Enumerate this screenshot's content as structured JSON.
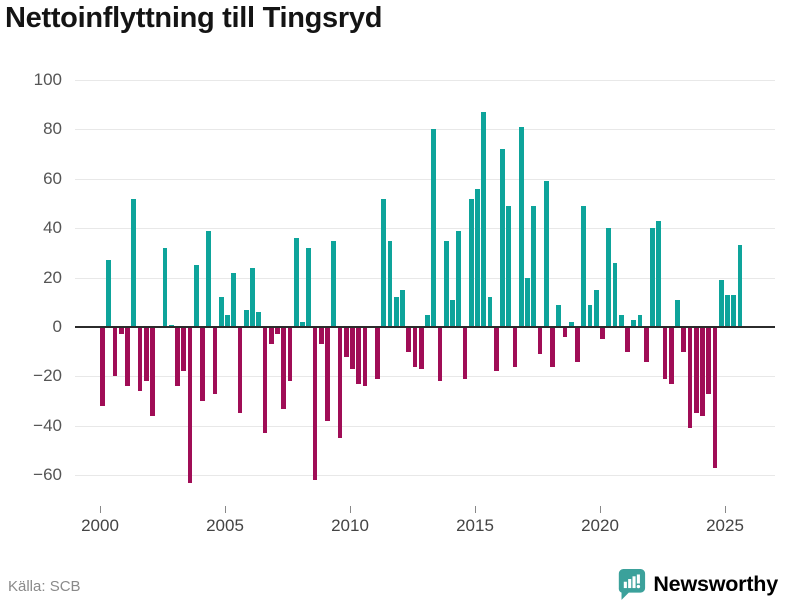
{
  "title": "Nettoinflyttning till Tingsryd",
  "source": "Källa: SCB",
  "logo": {
    "text": "Newsworthy",
    "color": "#3ba19b"
  },
  "colors": {
    "positive": "#0ea49b",
    "negative": "#a00d56",
    "gridline": "#e8e8e8",
    "zeroline": "#2b2b2b",
    "axis_text": "#555555",
    "title_text": "#141414"
  },
  "chart_data": {
    "type": "bar",
    "title": "Nettoinflyttning till Tingsryd",
    "xlabel": "",
    "ylabel": "",
    "frequency": "quarterly",
    "x_start": "2000 Q1",
    "x_end": "2025 Q3",
    "values": [
      -32,
      27,
      -20,
      -3,
      -24,
      52,
      -26,
      -22,
      -36,
      0,
      32,
      1,
      -24,
      -18,
      -63,
      25,
      -30,
      39,
      -27,
      12,
      5,
      22,
      -35,
      7,
      24,
      6,
      -43,
      -7,
      -3,
      -33,
      -22,
      36,
      2,
      32,
      -62,
      -7,
      -38,
      35,
      -45,
      -12,
      -17,
      -23,
      -24,
      0,
      -21,
      52,
      35,
      12,
      15,
      -10,
      -16,
      -17,
      5,
      80,
      -22,
      35,
      11,
      39,
      -21,
      52,
      56,
      87,
      12,
      -18,
      72,
      49,
      -16,
      81,
      20,
      49,
      -11,
      59,
      -16,
      9,
      -4,
      2,
      -14,
      49,
      9,
      15,
      -5,
      40,
      26,
      5,
      -10,
      3,
      5,
      -14,
      40,
      43,
      -21,
      -23,
      11,
      -10,
      -41,
      -35,
      -36,
      -27,
      -57,
      19,
      13,
      13,
      33
    ],
    "xticks": [
      2000,
      2005,
      2010,
      2015,
      2020,
      2025
    ],
    "yticks": [
      100,
      80,
      60,
      40,
      20,
      0,
      -20,
      -40,
      -60
    ],
    "ylim": [
      -70,
      105
    ],
    "grid": true,
    "legend": false
  }
}
